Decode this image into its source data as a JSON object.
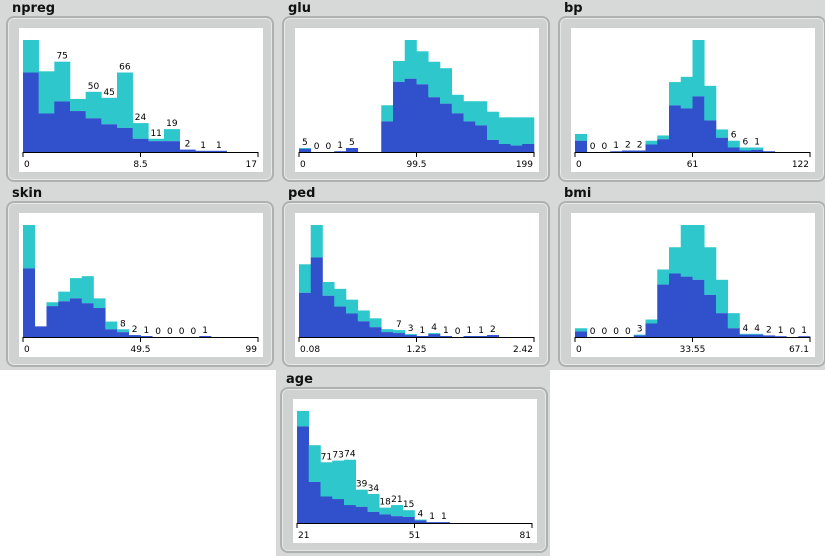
{
  "colors": {
    "lower": "#3150cc",
    "upper": "#2ec8cc",
    "axis": "#000000"
  },
  "chart_data": [
    {
      "type": "bar",
      "title": "npreg",
      "ticks": [
        "0",
        "8.5",
        "17"
      ],
      "bars": 15,
      "totals": [
        93,
        67,
        75,
        44,
        50,
        45,
        66,
        24,
        11,
        19,
        2,
        1,
        1,
        0,
        0
      ],
      "blue": [
        66,
        32,
        42,
        34,
        28,
        23,
        20,
        11,
        9,
        9,
        2,
        1,
        1,
        0,
        0
      ],
      "labels": [
        [
          2,
          "75"
        ],
        [
          4,
          "50"
        ],
        [
          5,
          "45"
        ],
        [
          6,
          "66"
        ],
        [
          7,
          "24"
        ],
        [
          8,
          "11"
        ],
        [
          9,
          "19"
        ],
        [
          10,
          "2"
        ],
        [
          11,
          "1"
        ],
        [
          12,
          "1"
        ]
      ]
    },
    {
      "type": "bar",
      "title": "glu",
      "ticks": [
        "0",
        "99.5",
        "199"
      ],
      "bars": 20,
      "totals": [
        5,
        0,
        0,
        1,
        5,
        0,
        0,
        58,
        113,
        139,
        125,
        112,
        104,
        71,
        63,
        63,
        50,
        43,
        43,
        43
      ],
      "blue": [
        4,
        0,
        0,
        1,
        5,
        0,
        0,
        38,
        87,
        91,
        84,
        68,
        60,
        48,
        38,
        33,
        15,
        10,
        8,
        10
      ],
      "labels": [
        [
          0,
          "5"
        ],
        [
          1,
          "0"
        ],
        [
          2,
          "0"
        ],
        [
          3,
          "1"
        ],
        [
          4,
          "5"
        ]
      ]
    },
    {
      "type": "bar",
      "title": "bp",
      "ticks": [
        "0",
        "61",
        "122"
      ],
      "bars": 20,
      "totals": [
        24,
        0,
        0,
        1,
        2,
        2,
        15,
        22,
        93,
        100,
        149,
        88,
        30,
        15,
        6,
        6,
        1,
        0,
        0,
        0
      ],
      "blue": [
        15,
        0,
        0,
        1,
        2,
        2,
        10,
        17,
        62,
        58,
        74,
        42,
        19,
        6,
        2,
        3,
        1,
        0,
        0,
        0
      ],
      "labels": [
        [
          1,
          "0"
        ],
        [
          2,
          "0"
        ],
        [
          3,
          "1"
        ],
        [
          4,
          "2"
        ],
        [
          5,
          "2"
        ],
        [
          13,
          "6"
        ],
        [
          14,
          "6"
        ],
        [
          15,
          "1"
        ]
      ]
    },
    {
      "type": "bar",
      "title": "skin",
      "ticks": [
        "0",
        "49.5",
        "99"
      ],
      "bars": 20,
      "totals": [
        116,
        11,
        36,
        47,
        61,
        63,
        40,
        16,
        8,
        2,
        1,
        0,
        0,
        0,
        0,
        1,
        0,
        0,
        0,
        0
      ],
      "blue": [
        71,
        11,
        32,
        37,
        40,
        35,
        30,
        8,
        5,
        2,
        1,
        0,
        0,
        0,
        0,
        1,
        0,
        0,
        0,
        0
      ],
      "labels": [
        [
          8,
          "8"
        ],
        [
          9,
          "2"
        ],
        [
          10,
          "1"
        ],
        [
          11,
          "0"
        ],
        [
          12,
          "0"
        ],
        [
          13,
          "0"
        ],
        [
          14,
          "0"
        ],
        [
          15,
          "1"
        ]
      ]
    },
    {
      "type": "bar",
      "title": "ped",
      "ticks": [
        "0.08",
        "1.25",
        "2.42"
      ],
      "bars": 20,
      "totals": [
        74,
        114,
        56,
        49,
        38,
        27,
        19,
        8,
        7,
        3,
        1,
        4,
        1,
        0,
        1,
        1,
        2,
        0,
        0,
        0
      ],
      "blue": [
        45,
        81,
        42,
        31,
        24,
        16,
        10,
        5,
        4,
        2,
        1,
        3,
        1,
        0,
        1,
        1,
        2,
        0,
        0,
        0
      ],
      "labels": [
        [
          8,
          "7"
        ],
        [
          9,
          "3"
        ],
        [
          10,
          "1"
        ],
        [
          11,
          "4"
        ],
        [
          12,
          "1"
        ],
        [
          13,
          "0"
        ],
        [
          14,
          "1"
        ],
        [
          15,
          "1"
        ],
        [
          16,
          "2"
        ]
      ]
    },
    {
      "type": "bar",
      "title": "bmi",
      "ticks": [
        "0",
        "33.55",
        "67.1"
      ],
      "bars": 20,
      "totals": [
        11,
        0,
        0,
        0,
        0,
        3,
        22,
        85,
        113,
        141,
        141,
        113,
        72,
        30,
        4,
        4,
        2,
        1,
        0,
        1
      ],
      "blue": [
        7,
        0,
        0,
        0,
        0,
        2,
        17,
        66,
        80,
        76,
        72,
        53,
        30,
        11,
        3,
        3,
        2,
        1,
        0,
        1
      ],
      "labels": [
        [
          1,
          "0"
        ],
        [
          2,
          "0"
        ],
        [
          3,
          "0"
        ],
        [
          4,
          "0"
        ],
        [
          5,
          "3"
        ],
        [
          14,
          "4"
        ],
        [
          15,
          "4"
        ],
        [
          16,
          "2"
        ],
        [
          17,
          "1"
        ],
        [
          18,
          "0"
        ],
        [
          19,
          "1"
        ]
      ]
    },
    {
      "type": "bar",
      "title": "age",
      "ticks": [
        "21",
        "51",
        "81"
      ],
      "bars": 20,
      "totals": [
        131,
        91,
        71,
        73,
        74,
        39,
        34,
        18,
        21,
        15,
        4,
        1,
        1,
        0,
        0,
        0,
        0,
        0,
        0,
        0
      ],
      "blue": [
        113,
        48,
        31,
        28,
        21,
        19,
        13,
        10,
        8,
        7,
        3,
        1,
        1,
        0,
        0,
        0,
        0,
        0,
        0,
        0
      ],
      "labels": [
        [
          2,
          "71"
        ],
        [
          3,
          "73"
        ],
        [
          4,
          "74"
        ],
        [
          5,
          "39"
        ],
        [
          6,
          "34"
        ],
        [
          7,
          "18"
        ],
        [
          8,
          "21"
        ],
        [
          9,
          "15"
        ],
        [
          10,
          "4"
        ],
        [
          11,
          "1"
        ],
        [
          12,
          "1"
        ]
      ]
    }
  ]
}
